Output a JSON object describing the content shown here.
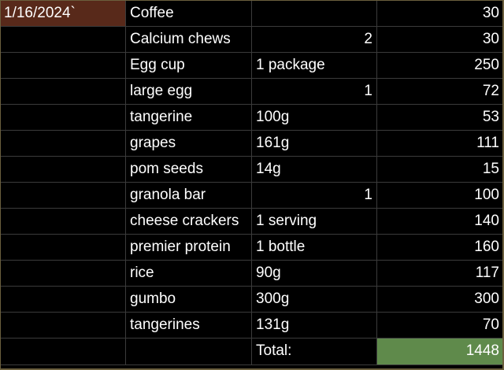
{
  "sheet": {
    "date": "1/16/2024`",
    "rows": [
      {
        "item": "Coffee",
        "qty": "",
        "count": "",
        "cal": "30"
      },
      {
        "item": "Calcium chews",
        "qty": "",
        "count": "2",
        "cal": "30"
      },
      {
        "item": "Egg cup",
        "qty": "1 package",
        "count": "",
        "cal": "250"
      },
      {
        "item": "large egg",
        "qty": "",
        "count": "1",
        "cal": "72"
      },
      {
        "item": "tangerine",
        "qty": "100g",
        "count": "",
        "cal": "53"
      },
      {
        "item": "grapes",
        "qty": "161g",
        "count": "",
        "cal": "111"
      },
      {
        "item": "pom seeds",
        "qty": "14g",
        "count": "",
        "cal": "15"
      },
      {
        "item": "granola bar",
        "qty": "",
        "count": "1",
        "cal": "100"
      },
      {
        "item": "cheese crackers",
        "qty": "1 serving",
        "count": "",
        "cal": "140"
      },
      {
        "item": "premier protein",
        "qty": "1 bottle",
        "count": "",
        "cal": "160"
      },
      {
        "item": "rice",
        "qty": "90g",
        "count": "",
        "cal": "117"
      },
      {
        "item": "gumbo",
        "qty": "300g",
        "count": "",
        "cal": "300"
      },
      {
        "item": "tangerines",
        "qty": "131g",
        "count": "",
        "cal": "70"
      }
    ],
    "total_label": "Total:",
    "total_value": "1448"
  },
  "colors": {
    "date_cell_bg": "#58291a",
    "total_cell_bg": "#5f8a4b",
    "grid_line": "#3b3b3b",
    "frame": "#6b5f3d"
  }
}
